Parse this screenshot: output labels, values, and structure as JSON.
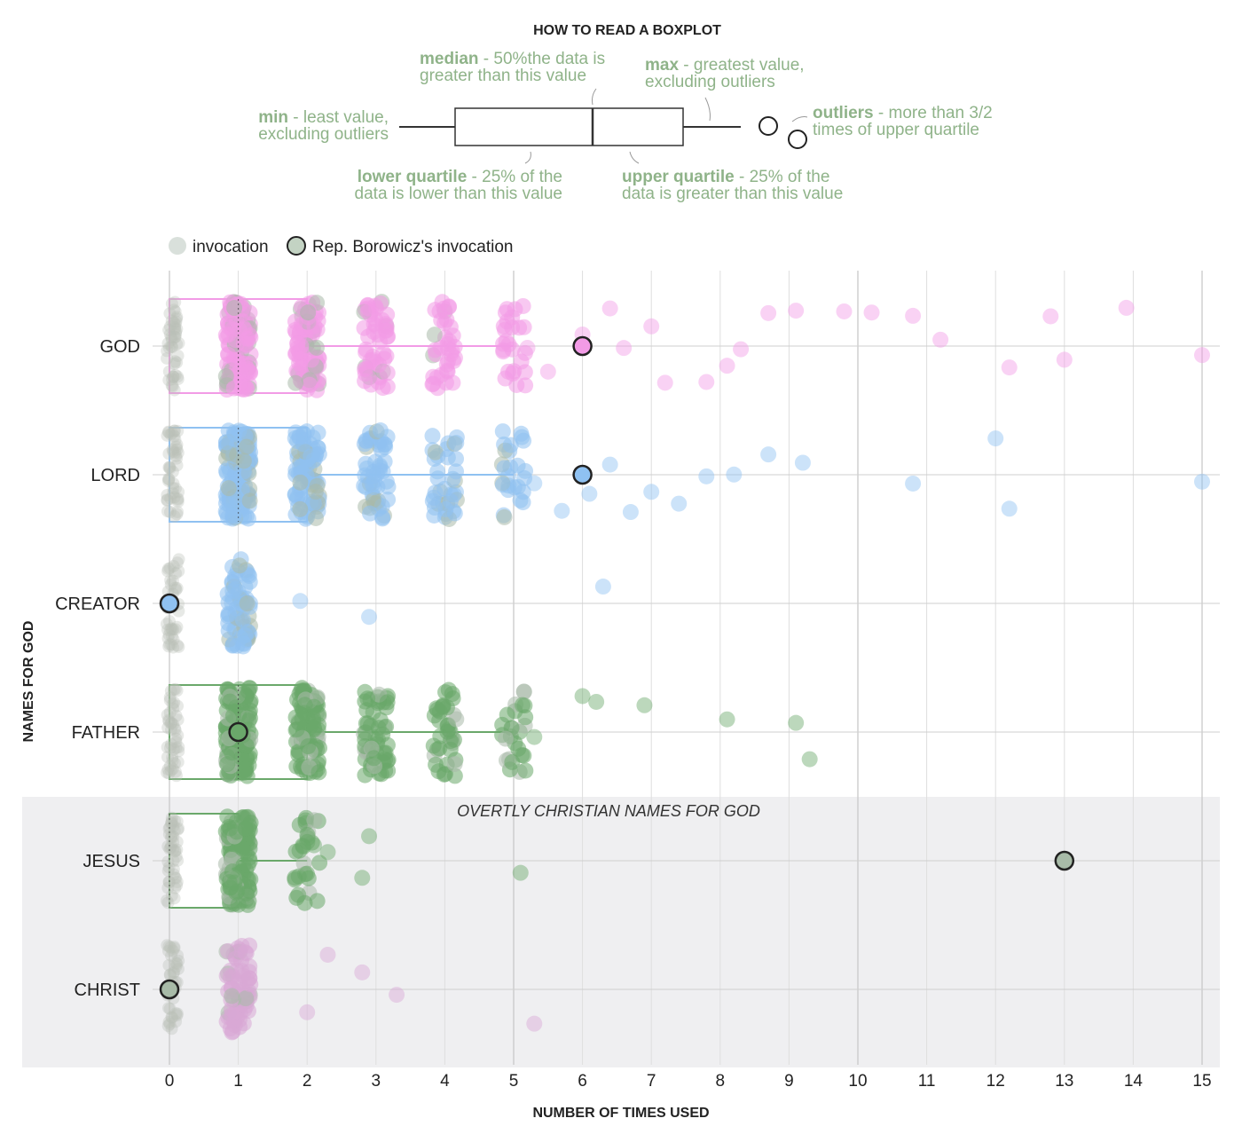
{
  "legend_guide": {
    "title": "HOW TO READ A BOXPLOT",
    "median": {
      "term": "median",
      "desc1": " - 50%the data is",
      "desc2": "greater than this value"
    },
    "max": {
      "term": "max",
      "desc1": " - greatest value,",
      "desc2": "excluding outliers"
    },
    "min": {
      "term": "min",
      "desc1": " - least value,",
      "desc2": "excluding outliers"
    },
    "outliers": {
      "term": "outliers",
      "desc1": " - more than 3/2",
      "desc2": "times of upper quartile"
    },
    "lower_quartile": {
      "term": "lower quartile",
      "desc1": " - 25% of the",
      "desc2": "data is lower than this value"
    },
    "upper_quartile": {
      "term": "upper quartile",
      "desc1": " - 25% of the",
      "desc2": "data is greater than this value"
    }
  },
  "legend": {
    "invocation": "invocation",
    "borowicz": "Rep. Borowicz's invocation"
  },
  "chart_data": {
    "type": "boxplot",
    "xlabel": "NUMBER OF TIMES USED",
    "ylabel": "NAMES FOR GOD",
    "xlim": [
      0,
      15
    ],
    "xticks": [
      0,
      1,
      2,
      3,
      4,
      5,
      6,
      7,
      8,
      9,
      10,
      11,
      12,
      13,
      14,
      15
    ],
    "shaded_band_label": "OVERTLY CHRISTIAN NAMES FOR GOD",
    "shaded_categories": [
      "JESUS",
      "CHRIST"
    ],
    "categories": [
      {
        "name": "GOD",
        "color": "#f29be6",
        "box": {
          "min": 0,
          "q1": 0,
          "median": 1,
          "q3": 2,
          "max": 5
        },
        "borowicz": 6,
        "outliers": [
          5.2,
          5.5,
          6,
          6.4,
          6.6,
          7.0,
          7.2,
          7.8,
          8.1,
          8.3,
          8.7,
          9.1,
          9.8,
          10.2,
          10.8,
          11.2,
          12.2,
          12.8,
          13.0,
          13.9,
          15.0
        ]
      },
      {
        "name": "LORD",
        "color": "#8fc1f1",
        "box": {
          "min": 0,
          "q1": 0,
          "median": 1,
          "q3": 2,
          "max": 5
        },
        "borowicz": 6,
        "outliers": [
          5.3,
          5.7,
          6.1,
          6.4,
          6.7,
          7.0,
          7.4,
          7.8,
          8.2,
          8.7,
          9.2,
          10.8,
          12.0,
          12.2,
          15.0
        ]
      },
      {
        "name": "CREATOR",
        "color": "#8fc1f1",
        "box": null,
        "borowicz": 0,
        "outliers": [
          1.9,
          2.9,
          6.3
        ]
      },
      {
        "name": "FATHER",
        "color": "#6aa86a",
        "box": {
          "min": 0,
          "q1": 0,
          "median": 1,
          "q3": 2,
          "max": 5
        },
        "borowicz": 1,
        "outliers": [
          5.3,
          6.0,
          6.2,
          6.9,
          8.1,
          9.1,
          9.3
        ]
      },
      {
        "name": "JESUS",
        "color": "#6aa86a",
        "box": {
          "min": 0,
          "q1": 0,
          "median": 0,
          "q3": 1,
          "max": 2
        },
        "borowicz": 13,
        "outliers": [
          2.1,
          2.3,
          2.8,
          2.9,
          5.1
        ]
      },
      {
        "name": "CHRIST",
        "color": "#d9a8d6",
        "box": null,
        "borowicz": 0,
        "outliers": [
          2.0,
          2.3,
          2.8,
          3.3,
          5.3
        ]
      }
    ]
  }
}
